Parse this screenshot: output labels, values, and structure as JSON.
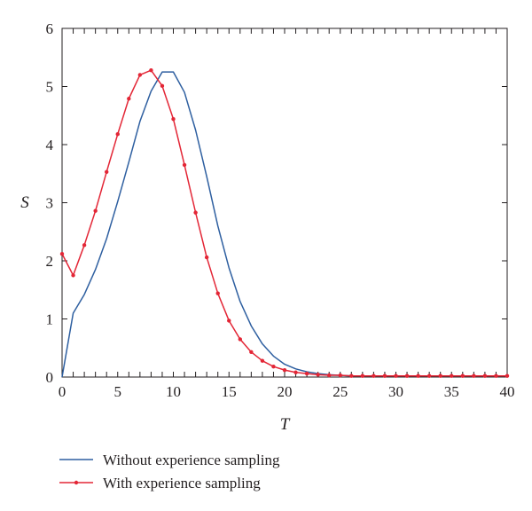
{
  "chart_data": {
    "type": "line",
    "xlabel": "T",
    "ylabel": "S",
    "xlim": [
      0,
      40
    ],
    "ylim": [
      0,
      6
    ],
    "xticks": [
      "0",
      "5",
      "10",
      "15",
      "20",
      "25",
      "30",
      "35",
      "40"
    ],
    "yticks": [
      "0",
      "1",
      "2",
      "3",
      "4",
      "5",
      "6"
    ],
    "grid": false,
    "legend_position": "bottom-left, below plot",
    "series": [
      {
        "name": "Without experience sampling",
        "color": "#2e5fa0",
        "marker": "none",
        "x": [
          0,
          1,
          2,
          3,
          4,
          5,
          6,
          7,
          8,
          9,
          10,
          11,
          12,
          13,
          14,
          15,
          16,
          17,
          18,
          19,
          20,
          21,
          22,
          23,
          24,
          25,
          26,
          27,
          28,
          29,
          30,
          31,
          32,
          33,
          34,
          35,
          36,
          37,
          38,
          39,
          40
        ],
        "y": [
          0,
          1.1,
          1.42,
          1.85,
          2.38,
          3.02,
          3.7,
          4.4,
          4.92,
          5.25,
          5.25,
          4.9,
          4.25,
          3.45,
          2.6,
          1.88,
          1.3,
          0.88,
          0.57,
          0.36,
          0.22,
          0.14,
          0.09,
          0.06,
          0.04,
          0.03,
          0.02,
          0.02,
          0.02,
          0.02,
          0.02,
          0.02,
          0.02,
          0.02,
          0.02,
          0.02,
          0.02,
          0.02,
          0.02,
          0.02,
          0.02
        ]
      },
      {
        "name": "With experience sampling",
        "color": "#e32636",
        "marker": "dot",
        "x": [
          0,
          1,
          2,
          3,
          4,
          5,
          6,
          7,
          8,
          9,
          10,
          11,
          12,
          13,
          14,
          15,
          16,
          17,
          18,
          19,
          20,
          21,
          22,
          23,
          24,
          25,
          26,
          27,
          28,
          29,
          30,
          31,
          32,
          33,
          34,
          35,
          36,
          37,
          38,
          39,
          40
        ],
        "y": [
          2.12,
          1.75,
          2.27,
          2.86,
          3.53,
          4.18,
          4.79,
          5.2,
          5.28,
          5.01,
          4.44,
          3.65,
          2.83,
          2.06,
          1.44,
          0.97,
          0.65,
          0.43,
          0.28,
          0.18,
          0.12,
          0.08,
          0.06,
          0.04,
          0.03,
          0.03,
          0.02,
          0.02,
          0.02,
          0.02,
          0.02,
          0.02,
          0.02,
          0.02,
          0.02,
          0.02,
          0.02,
          0.02,
          0.02,
          0.02,
          0.02
        ]
      }
    ]
  }
}
